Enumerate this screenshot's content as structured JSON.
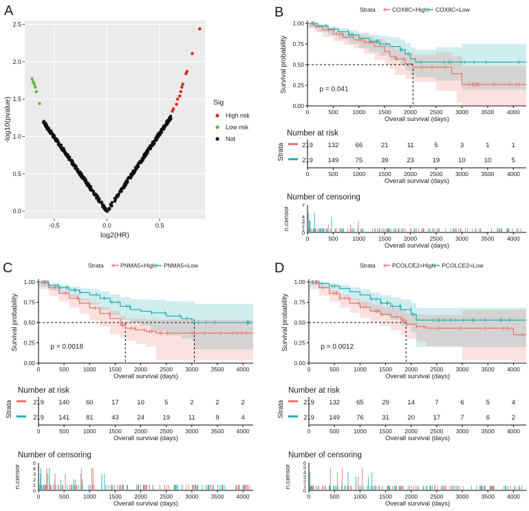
{
  "figure": {
    "panel_labels": [
      "A",
      "B",
      "C",
      "D"
    ],
    "strata_label": "Strata",
    "risk_title": "Number at risk",
    "censor_title": "Number of censoring",
    "censor_ylabel": "n.censor"
  },
  "colors": {
    "high": "#e8766c",
    "low": "#27aeb3",
    "sig_high": "#dd2b22",
    "sig_low": "#6cb33f",
    "not": "#111111"
  },
  "chart_data": [
    {
      "panel": "A",
      "type": "scatter",
      "title": "",
      "xlabel": "log2(HR)",
      "ylabel": "-log10(pvalue)",
      "xlim": [
        -0.78,
        0.93
      ],
      "ylim": [
        -0.1,
        2.55
      ],
      "xticks": [
        -0.5,
        0.0,
        0.5
      ],
      "xtick_labels": [
        "-0.5",
        "0.0",
        "0.5"
      ],
      "yticks": [
        0.0,
        0.5,
        1.0,
        1.5,
        2.0,
        2.5
      ],
      "ytick_labels": [
        "0.0",
        "0.5",
        "1.0",
        "1.5",
        "2.0",
        "2.5"
      ],
      "legend": {
        "title": "Sig",
        "position": "right",
        "entries": [
          "High risk",
          "Low risk",
          "Not"
        ]
      },
      "series": [
        {
          "name": "High risk",
          "points": [
            [
              0.88,
              2.44
            ],
            [
              0.81,
              2.11
            ],
            [
              0.76,
              1.87
            ],
            [
              0.75,
              1.84
            ],
            [
              0.72,
              1.7
            ],
            [
              0.71,
              1.66
            ],
            [
              0.7,
              1.6
            ],
            [
              0.69,
              1.54
            ],
            [
              0.67,
              1.5
            ],
            [
              0.66,
              1.43
            ],
            [
              0.63,
              1.37
            ],
            [
              0.62,
              1.34
            ]
          ]
        },
        {
          "name": "Low risk",
          "points": [
            [
              -0.71,
              1.77
            ],
            [
              -0.7,
              1.73
            ],
            [
              -0.69,
              1.7
            ],
            [
              -0.68,
              1.66
            ],
            [
              -0.67,
              1.6
            ],
            [
              -0.64,
              1.44
            ]
          ]
        },
        {
          "name": "Not",
          "points": "dense V-shaped cloud from (-0.61,1.21) down to (0,0) and up to (0.61,1.27)"
        }
      ]
    },
    {
      "panel": "B",
      "type": "line",
      "strata": [
        "COX8C=High",
        "COX8C=Low"
      ],
      "xlabel": "Overall survival (days)",
      "ylabel": "Survival probability",
      "xlim": [
        0,
        4250
      ],
      "ylim": [
        0,
        1
      ],
      "xticks": [
        0,
        500,
        1000,
        1500,
        2000,
        2500,
        3000,
        3500,
        4000
      ],
      "yticks": [
        0.0,
        0.25,
        0.5,
        0.75,
        1.0
      ],
      "ytick_labels": [
        "0.00",
        "0.25",
        "0.50",
        "0.75",
        "1.00"
      ],
      "pvalue": "p = 0.041",
      "median": [
        2050
      ],
      "series": [
        {
          "name": "High",
          "x": [
            0,
            150,
            300,
            500,
            700,
            900,
            1100,
            1300,
            1500,
            1600,
            1700,
            1900,
            2050,
            2500,
            2800,
            2900,
            3000,
            4250
          ],
          "y": [
            1,
            0.96,
            0.92,
            0.87,
            0.83,
            0.8,
            0.77,
            0.72,
            0.66,
            0.6,
            0.57,
            0.51,
            0.47,
            0.47,
            0.39,
            0.39,
            0.26,
            0.26
          ]
        },
        {
          "name": "Low",
          "x": [
            0,
            200,
            400,
            600,
            800,
            1000,
            1200,
            1400,
            1600,
            1800,
            1900,
            2000,
            2100,
            2500,
            3000,
            4250
          ],
          "y": [
            1,
            0.97,
            0.93,
            0.9,
            0.86,
            0.82,
            0.78,
            0.75,
            0.72,
            0.68,
            0.63,
            0.57,
            0.53,
            0.53,
            0.53,
            0.53
          ]
        }
      ],
      "risk_table": {
        "High": [
          219,
          132,
          66,
          21,
          11,
          5,
          3,
          1,
          1
        ],
        "Low": [
          219,
          149,
          75,
          39,
          23,
          19,
          10,
          10,
          5
        ]
      },
      "censor_ymax": 7,
      "censor_yticks": [
        "0",
        "1",
        "2",
        "3",
        "4",
        "7"
      ]
    },
    {
      "panel": "C",
      "type": "line",
      "strata": [
        "PNMA5=High",
        "PNMA5=Low"
      ],
      "xlabel": "Overall survival (days)",
      "ylabel": "Survival probability",
      "xlim": [
        0,
        4200
      ],
      "ylim": [
        0,
        1
      ],
      "xticks": [
        0,
        500,
        1000,
        1500,
        2000,
        2500,
        3000,
        3500,
        4000
      ],
      "yticks": [
        0.0,
        0.25,
        0.5,
        0.75,
        1.0
      ],
      "ytick_labels": [
        "0.00",
        "0.25",
        "0.50",
        "0.75",
        "1.00"
      ],
      "pvalue": "p = 0.0018",
      "median": [
        1700,
        3050
      ],
      "series": [
        {
          "name": "High",
          "x": [
            0,
            200,
            400,
            600,
            800,
            1000,
            1200,
            1400,
            1600,
            1700,
            1900,
            2100,
            2300,
            4200
          ],
          "y": [
            1,
            0.93,
            0.86,
            0.8,
            0.74,
            0.68,
            0.61,
            0.55,
            0.47,
            0.43,
            0.41,
            0.39,
            0.37,
            0.37
          ]
        },
        {
          "name": "Low",
          "x": [
            0,
            200,
            400,
            600,
            800,
            1000,
            1200,
            1400,
            1600,
            1800,
            2000,
            2200,
            2500,
            2800,
            3000,
            3050,
            4200
          ],
          "y": [
            1,
            0.96,
            0.93,
            0.9,
            0.87,
            0.84,
            0.8,
            0.75,
            0.7,
            0.66,
            0.64,
            0.62,
            0.58,
            0.55,
            0.53,
            0.5,
            0.5
          ]
        }
      ],
      "risk_table": {
        "High": [
          219,
          140,
          60,
          17,
          10,
          5,
          2,
          2,
          2
        ],
        "Low": [
          219,
          141,
          81,
          43,
          24,
          19,
          11,
          9,
          4
        ]
      },
      "censor_ymax": 5,
      "censor_yticks": [
        "0",
        "1",
        "2",
        "3",
        "4",
        "5"
      ]
    },
    {
      "panel": "D",
      "type": "line",
      "strata": [
        "PCOLCE2=High",
        "PCOLCE2=Low"
      ],
      "xlabel": "Overall survival (days)",
      "ylabel": "Survival probability",
      "xlim": [
        0,
        4250
      ],
      "ylim": [
        0,
        1
      ],
      "xticks": [
        0,
        500,
        1000,
        1500,
        2000,
        2500,
        3000,
        3500,
        4000
      ],
      "yticks": [
        0.0,
        0.25,
        0.5,
        0.75,
        1.0
      ],
      "ytick_labels": [
        "0.00",
        "0.25",
        "0.50",
        "0.75",
        "1.00"
      ],
      "pvalue": "p = 0.0012",
      "median": [
        1900
      ],
      "series": [
        {
          "name": "High",
          "x": [
            0,
            200,
            400,
            600,
            800,
            1000,
            1200,
            1400,
            1600,
            1800,
            1900,
            2100,
            2300,
            3000,
            4000,
            4250
          ],
          "y": [
            1,
            0.93,
            0.86,
            0.8,
            0.74,
            0.69,
            0.64,
            0.6,
            0.57,
            0.53,
            0.48,
            0.45,
            0.43,
            0.43,
            0.35,
            0.35
          ]
        },
        {
          "name": "Low",
          "x": [
            0,
            200,
            400,
            600,
            800,
            1000,
            1200,
            1400,
            1600,
            1800,
            2000,
            2100,
            4250
          ],
          "y": [
            1,
            0.98,
            0.95,
            0.92,
            0.88,
            0.84,
            0.79,
            0.74,
            0.7,
            0.66,
            0.6,
            0.53,
            0.53
          ]
        }
      ],
      "risk_table": {
        "High": [
          219,
          132,
          65,
          29,
          14,
          7,
          6,
          5,
          4
        ],
        "Low": [
          219,
          149,
          76,
          31,
          20,
          17,
          7,
          6,
          2
        ]
      },
      "censor_ymax": 6,
      "censor_yticks": [
        "0",
        "1",
        "2",
        "3",
        "4",
        "5",
        "6"
      ]
    }
  ]
}
